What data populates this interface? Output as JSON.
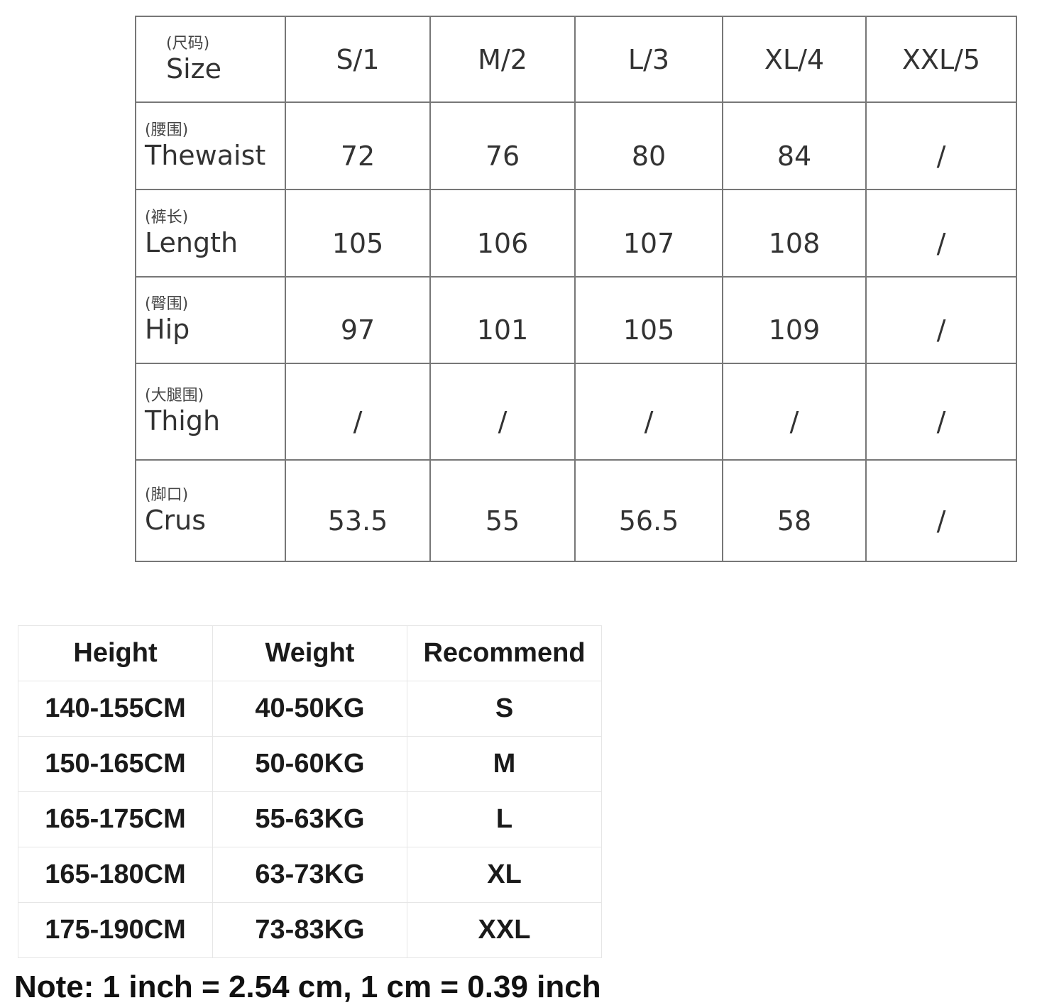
{
  "size_chart": {
    "header": {
      "label_cn": "(尺码)",
      "label_en": "Size",
      "sizes": [
        "S/1",
        "M/2",
        "L/3",
        "XL/4",
        "XXL/5"
      ]
    },
    "rows": [
      {
        "label_cn": "(腰围)",
        "label_en": "Thewaist",
        "values": [
          "72",
          "76",
          "80",
          "84",
          "/"
        ]
      },
      {
        "label_cn": "(裤长)",
        "label_en": "Length",
        "values": [
          "105",
          "106",
          "107",
          "108",
          "/"
        ]
      },
      {
        "label_cn": "(臀围)",
        "label_en": "Hip",
        "values": [
          "97",
          "101",
          "105",
          "109",
          "/"
        ]
      },
      {
        "label_cn": "(大腿围)",
        "label_en": "Thigh",
        "values": [
          "/",
          "/",
          "/",
          "/",
          "/"
        ]
      },
      {
        "label_cn": "(脚口)",
        "label_en": "Crus",
        "values": [
          "53.5",
          "55",
          "56.5",
          "58",
          "/"
        ]
      }
    ]
  },
  "recommend_table": {
    "headers": [
      "Height",
      "Weight",
      "Recommend"
    ],
    "rows": [
      [
        "140-155CM",
        "40-50KG",
        "S"
      ],
      [
        "150-165CM",
        "50-60KG",
        "M"
      ],
      [
        "165-175CM",
        "55-63KG",
        "L"
      ],
      [
        "165-180CM",
        "63-73KG",
        "XL"
      ],
      [
        "175-190CM",
        "73-83KG",
        "XXL"
      ]
    ]
  },
  "note": "Note: 1 inch = 2.54 cm, 1 cm = 0.39 inch"
}
